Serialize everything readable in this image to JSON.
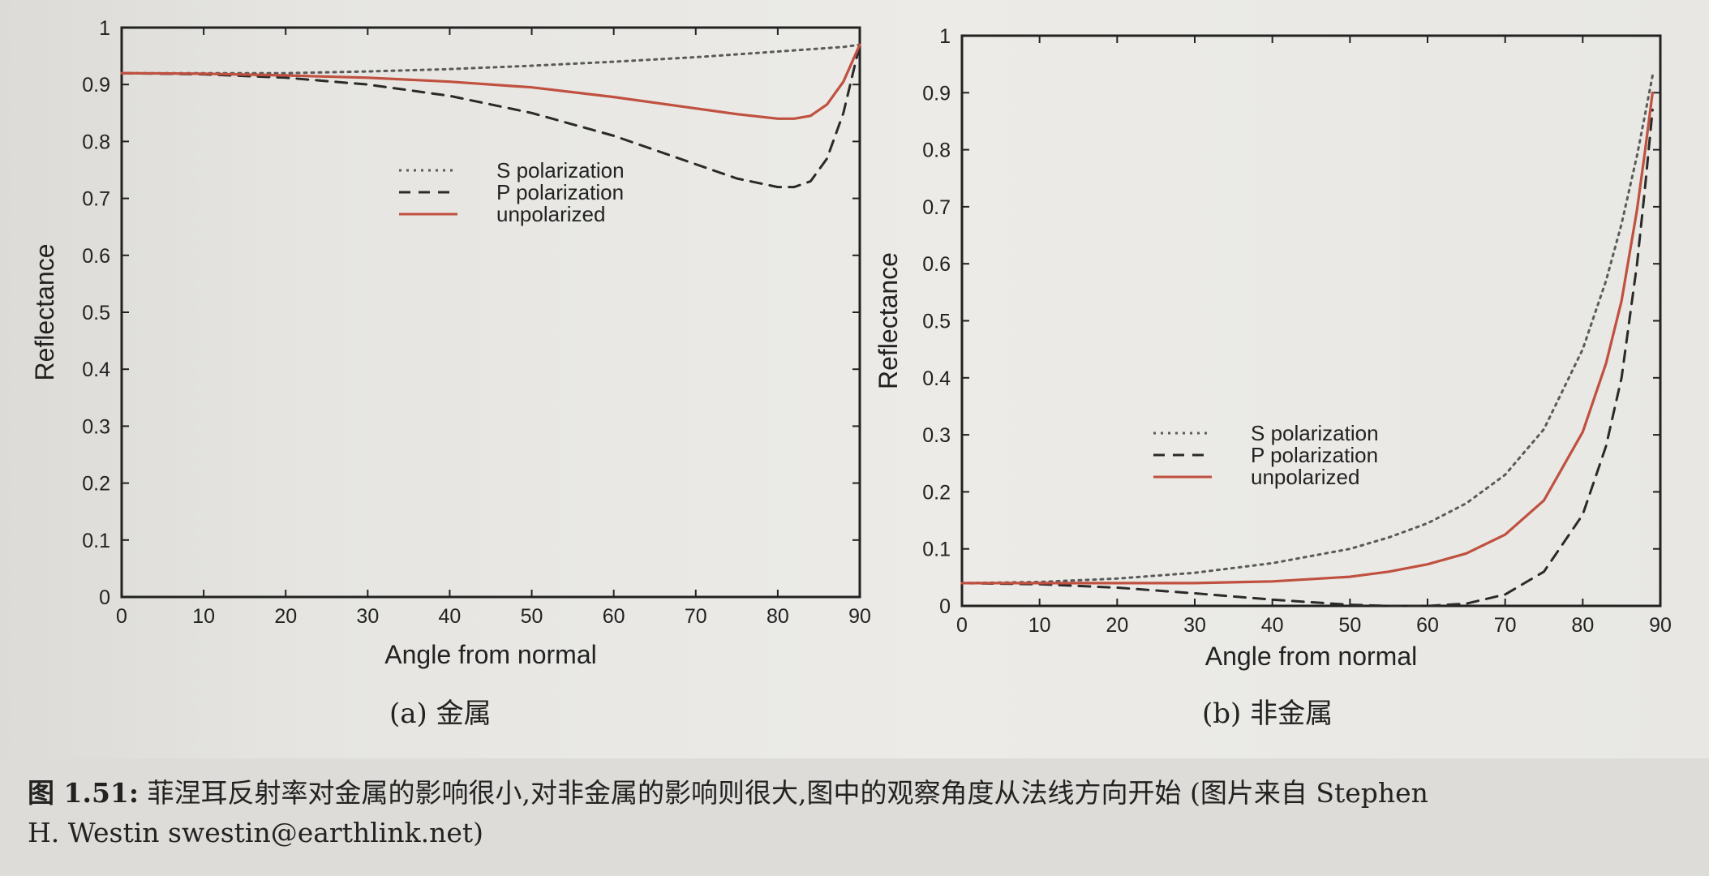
{
  "chart_data": [
    {
      "type": "line",
      "xlabel": "Angle from normal",
      "ylabel": "Reflectance",
      "xlim": [
        0,
        90
      ],
      "ylim": [
        0,
        1
      ],
      "xticks": [
        0,
        10,
        20,
        30,
        40,
        50,
        60,
        70,
        80,
        90
      ],
      "yticks": [
        0,
        0.1,
        0.2,
        0.3,
        0.4,
        0.5,
        0.6,
        0.7,
        0.8,
        0.9,
        1
      ],
      "grid": false,
      "legend_position": "center",
      "x": [
        0,
        10,
        20,
        30,
        40,
        50,
        60,
        70,
        75,
        80,
        82,
        84,
        86,
        88,
        90
      ],
      "series": [
        {
          "name": "S polarization",
          "style": "dotted",
          "color": "#5a5a5a",
          "values": [
            0.92,
            0.92,
            0.92,
            0.923,
            0.927,
            0.933,
            0.94,
            0.948,
            0.953,
            0.958,
            0.96,
            0.962,
            0.964,
            0.966,
            0.97
          ]
        },
        {
          "name": "P polarization",
          "style": "dashed",
          "color": "#2a2a2a",
          "values": [
            0.92,
            0.918,
            0.912,
            0.9,
            0.88,
            0.85,
            0.81,
            0.76,
            0.735,
            0.72,
            0.72,
            0.73,
            0.77,
            0.85,
            0.97
          ]
        },
        {
          "name": "unpolarized",
          "style": "solid",
          "color": "#c0503f",
          "values": [
            0.92,
            0.919,
            0.916,
            0.912,
            0.905,
            0.895,
            0.878,
            0.858,
            0.848,
            0.84,
            0.84,
            0.845,
            0.865,
            0.905,
            0.97
          ]
        }
      ]
    },
    {
      "type": "line",
      "xlabel": "Angle from normal",
      "ylabel": "Reflectance",
      "xlim": [
        0,
        90
      ],
      "ylim": [
        0,
        1
      ],
      "xticks": [
        0,
        10,
        20,
        30,
        40,
        50,
        60,
        70,
        80,
        90
      ],
      "yticks": [
        0,
        0.1,
        0.2,
        0.3,
        0.4,
        0.5,
        0.6,
        0.7,
        0.8,
        0.9,
        1
      ],
      "grid": false,
      "legend_position": "center-right",
      "x": [
        0,
        10,
        20,
        30,
        40,
        50,
        55,
        60,
        65,
        70,
        75,
        80,
        83,
        85,
        87,
        88,
        89
      ],
      "series": [
        {
          "name": "S polarization",
          "style": "dotted",
          "color": "#5a5a5a",
          "values": [
            0.04,
            0.042,
            0.048,
            0.058,
            0.075,
            0.1,
            0.12,
            0.145,
            0.18,
            0.23,
            0.31,
            0.45,
            0.57,
            0.67,
            0.79,
            0.86,
            0.93
          ]
        },
        {
          "name": "P polarization",
          "style": "dashed",
          "color": "#2a2a2a",
          "values": [
            0.04,
            0.038,
            0.032,
            0.022,
            0.011,
            0.002,
            0.0,
            0.0,
            0.004,
            0.02,
            0.06,
            0.16,
            0.28,
            0.4,
            0.6,
            0.73,
            0.87
          ]
        },
        {
          "name": "unpolarized",
          "style": "solid",
          "color": "#c0503f",
          "values": [
            0.04,
            0.04,
            0.04,
            0.04,
            0.043,
            0.051,
            0.06,
            0.073,
            0.092,
            0.125,
            0.185,
            0.305,
            0.425,
            0.535,
            0.695,
            0.795,
            0.9
          ]
        }
      ]
    }
  ],
  "subfigures": [
    {
      "label": "(a) 金属"
    },
    {
      "label": "(b) 非金属"
    }
  ],
  "caption": {
    "number": "图 1.51:",
    "line1": " 菲涅耳反射率对金属的影响很小,对非金属的影响则很大,图中的观察角度从法线方向开始 (图片来自 Stephen",
    "line2": "H. Westin swestin@earthlink.net)"
  }
}
